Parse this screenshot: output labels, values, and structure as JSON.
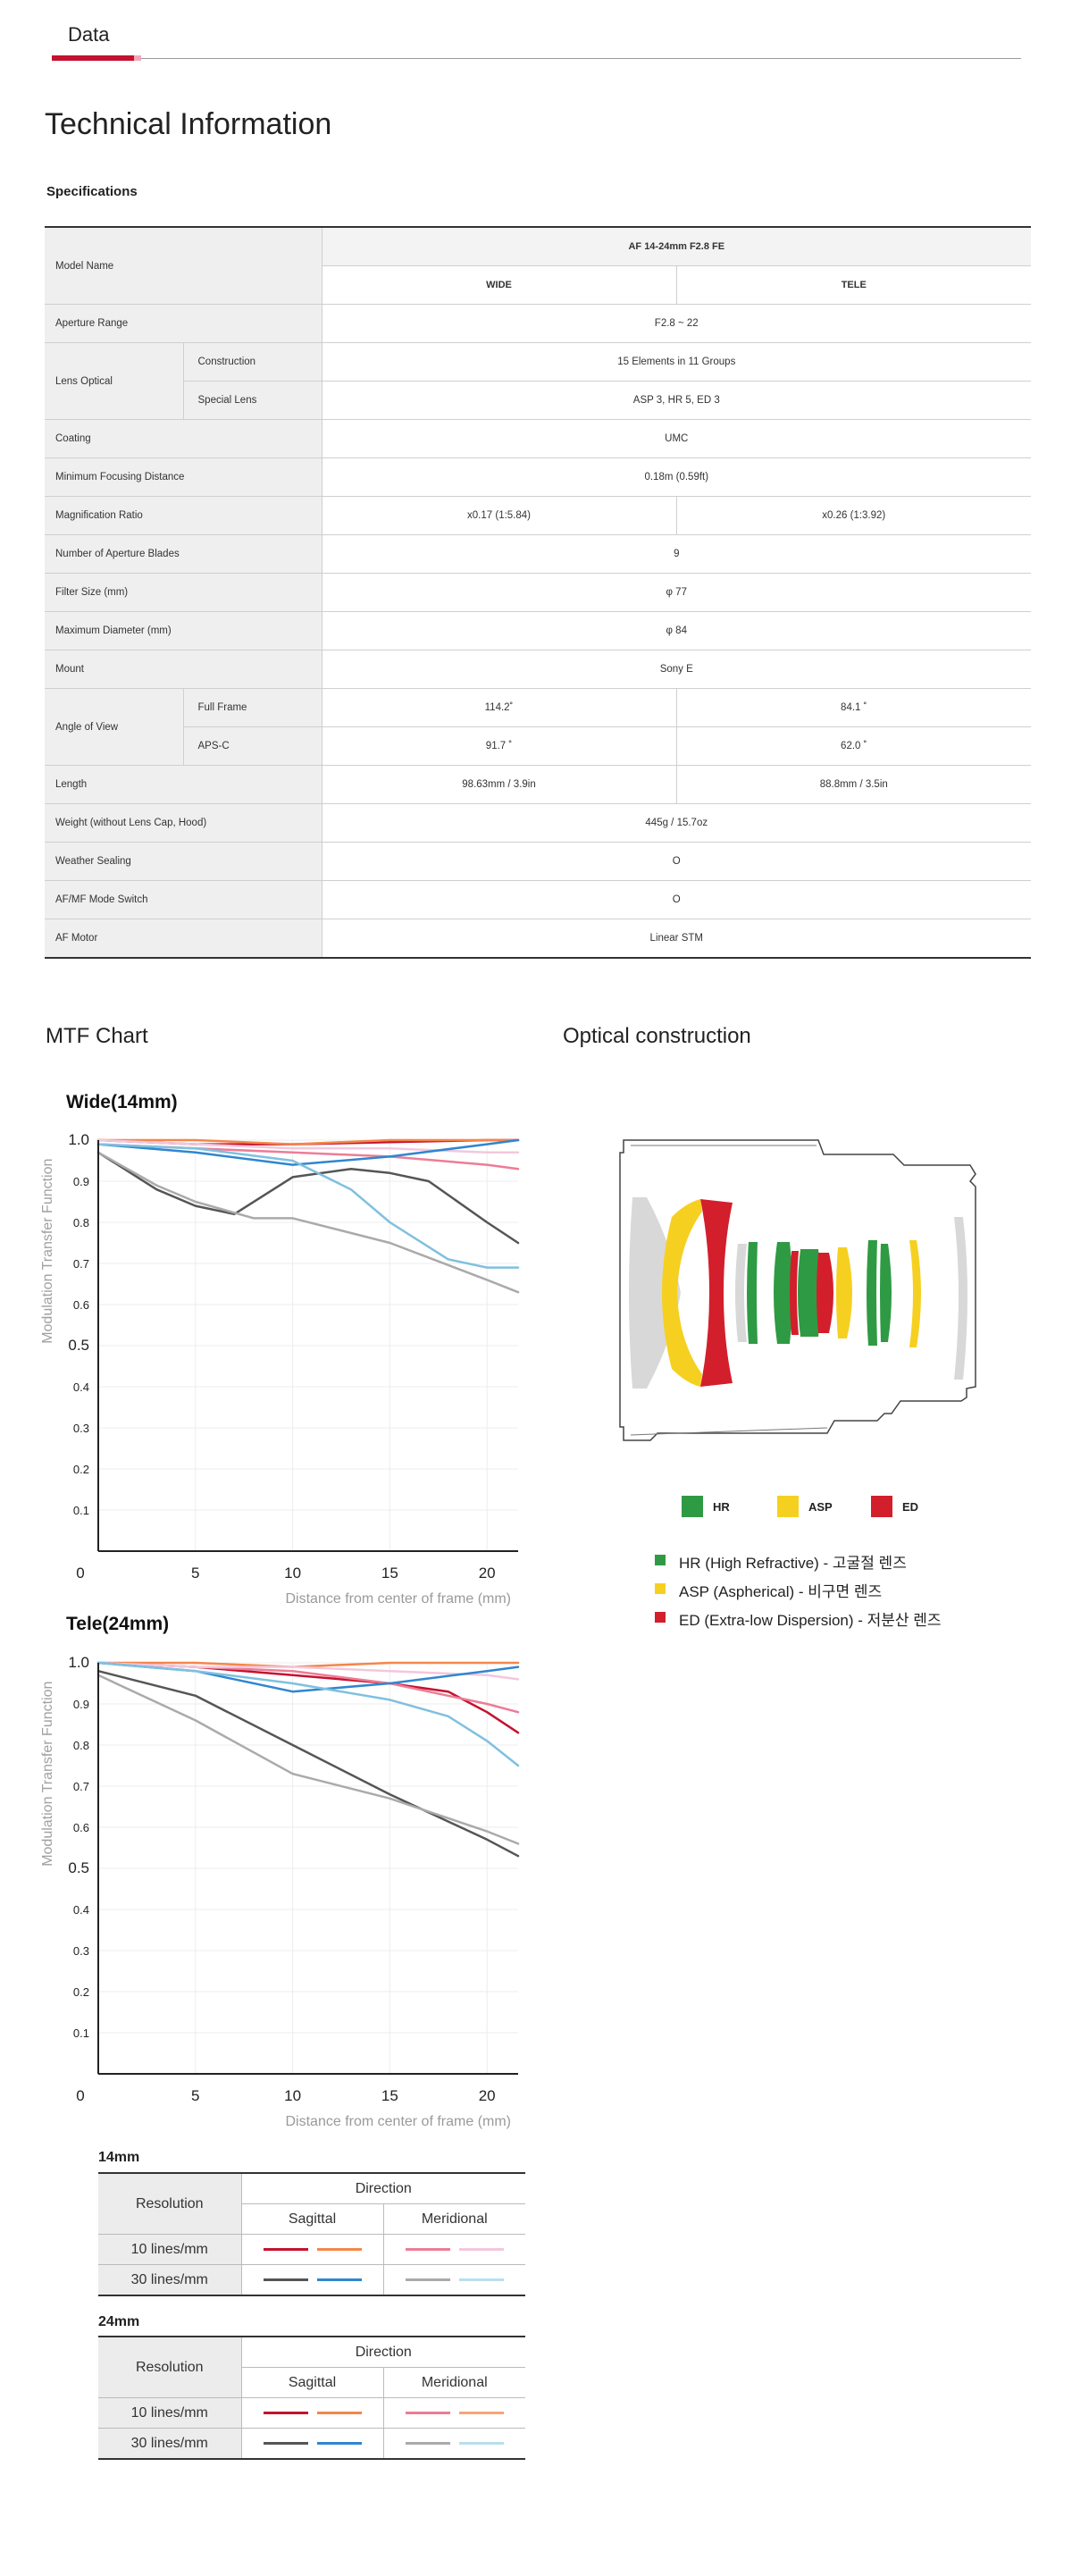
{
  "tab": {
    "label": "Data"
  },
  "technical": {
    "title": "Technical Information",
    "spec_title": "Specifications"
  },
  "spec": {
    "model_label": "Model Name",
    "model_value": "AF 14-24mm F2.8 FE",
    "wide": "WIDE",
    "tele": "TELE",
    "aperture_label": "Aperture Range",
    "aperture_value": "F2.8 ~ 22",
    "lens_optical_label": "Lens Optical",
    "construction_label": "Construction",
    "construction_value": "15 Elements in 11 Groups",
    "special_lens_label": "Special Lens",
    "special_lens_value": "ASP 3, HR 5, ED 3",
    "coating_label": "Coating",
    "coating_value": "UMC",
    "mfd_label": "Minimum Focusing Distance",
    "mfd_value": "0.18m (0.59ft)",
    "mag_label": "Magnification Ratio",
    "mag_wide": "x0.17 (1:5.84)",
    "mag_tele": "x0.26 (1:3.92)",
    "blades_label": "Number of Aperture Blades",
    "blades_value": "9",
    "filter_label": "Filter Size (mm)",
    "filter_value": "φ 77",
    "diameter_label": "Maximum Diameter (mm)",
    "diameter_value": "φ 84",
    "mount_label": "Mount",
    "mount_value": "Sony E",
    "aov_label": "Angle of View",
    "ff_label": "Full Frame",
    "ff_wide": "114.2˚",
    "ff_tele": "84.1 ˚",
    "apsc_label": "APS-C",
    "apsc_wide": "91.7 ˚",
    "apsc_tele": "62.0 ˚",
    "length_label": "Length",
    "length_wide": "98.63mm / 3.9in",
    "length_tele": "88.8mm / 3.5in",
    "weight_label": "Weight (without Lens Cap, Hood)",
    "weight_value": "445g / 15.7oz",
    "sealing_label": "Weather Sealing",
    "sealing_value": "O",
    "afmf_label": "AF/MF Mode Switch",
    "afmf_value": "O",
    "motor_label": "AF Motor",
    "motor_value": "Linear STM"
  },
  "sections": {
    "mtf": "MTF Chart",
    "optical": "Optical construction"
  },
  "chart_data": [
    {
      "type": "line",
      "title": "Wide(14mm)",
      "xlabel": "Distance from center of frame (mm)",
      "ylabel": "Modulation Transfer Function",
      "xlim": [
        0,
        21.6
      ],
      "ylim": [
        0,
        1.0
      ],
      "xticks": [
        "0",
        "5",
        "10",
        "15",
        "20"
      ],
      "yticks": [
        "0.1",
        "0.2",
        "0.3",
        "0.4",
        "0.5",
        "0.6",
        "0.7",
        "0.8",
        "0.9",
        "1.0"
      ],
      "grid": true,
      "series": [
        {
          "name": "10 lines/mm Sagittal",
          "color": "#c4122f",
          "x": [
            0,
            5,
            10,
            15,
            20,
            21.6
          ],
          "y": [
            1.0,
            0.99,
            0.99,
            0.995,
            1.0,
            1.0
          ]
        },
        {
          "name": "10 lines/mm Sagittal",
          "color": "#f4864a",
          "x": [
            0,
            5,
            10,
            15,
            20,
            21.6
          ],
          "y": [
            1.0,
            1.0,
            0.99,
            1.0,
            1.0,
            1.0
          ]
        },
        {
          "name": "10 lines/mm Meridional",
          "color": "#ec7d96",
          "x": [
            0,
            5,
            10,
            15,
            20,
            21.6
          ],
          "y": [
            0.99,
            0.98,
            0.97,
            0.96,
            0.94,
            0.93
          ]
        },
        {
          "name": "10 lines/mm Meridional",
          "color": "#f3c7dd",
          "x": [
            0,
            5,
            10,
            15,
            20,
            21.6
          ],
          "y": [
            1.0,
            0.99,
            0.98,
            0.98,
            0.97,
            0.97
          ]
        },
        {
          "name": "30 lines/mm Sagittal",
          "color": "#555555",
          "x": [
            0,
            3,
            5,
            7,
            10,
            13,
            15,
            17,
            20,
            21.6
          ],
          "y": [
            0.97,
            0.88,
            0.84,
            0.82,
            0.91,
            0.93,
            0.92,
            0.9,
            0.8,
            0.75
          ]
        },
        {
          "name": "30 lines/mm Sagittal",
          "color": "#2f86d0",
          "x": [
            0,
            5,
            10,
            15,
            20,
            21.6
          ],
          "y": [
            0.99,
            0.97,
            0.94,
            0.96,
            0.99,
            1.0
          ]
        },
        {
          "name": "30 lines/mm Meridional",
          "color": "#aaaaaa",
          "x": [
            0,
            3,
            5,
            8,
            10,
            15,
            20,
            21.6
          ],
          "y": [
            0.97,
            0.89,
            0.85,
            0.81,
            0.81,
            0.75,
            0.66,
            0.63
          ]
        },
        {
          "name": "30 lines/mm Meridional",
          "color": "#7fc0e0",
          "x": [
            0,
            5,
            10,
            13,
            15,
            18,
            20,
            21.6
          ],
          "y": [
            0.99,
            0.98,
            0.95,
            0.88,
            0.8,
            0.71,
            0.69,
            0.69
          ]
        }
      ]
    },
    {
      "type": "line",
      "title": "Tele(24mm)",
      "xlabel": "Distance from center of frame (mm)",
      "ylabel": "Modulation Transfer Function",
      "xlim": [
        0,
        21.6
      ],
      "ylim": [
        0,
        1.0
      ],
      "xticks": [
        "0",
        "5",
        "10",
        "15",
        "20"
      ],
      "yticks": [
        "0.1",
        "0.2",
        "0.3",
        "0.4",
        "0.5",
        "0.6",
        "0.7",
        "0.8",
        "0.9",
        "1.0"
      ],
      "grid": true,
      "series": [
        {
          "name": "10 lines/mm Sagittal",
          "color": "#c4122f",
          "x": [
            0,
            5,
            10,
            15,
            18,
            20,
            21.6
          ],
          "y": [
            1.0,
            0.99,
            0.97,
            0.95,
            0.93,
            0.88,
            0.83
          ]
        },
        {
          "name": "10 lines/mm Sagittal",
          "color": "#f4864a",
          "x": [
            0,
            5,
            10,
            15,
            20,
            21.6
          ],
          "y": [
            1.0,
            1.0,
            0.99,
            1.0,
            1.0,
            1.0
          ]
        },
        {
          "name": "10 lines/mm Meridional",
          "color": "#ec7d96",
          "x": [
            0,
            5,
            10,
            15,
            20,
            21.6
          ],
          "y": [
            1.0,
            0.99,
            0.98,
            0.95,
            0.9,
            0.88
          ]
        },
        {
          "name": "10 lines/mm Meridional",
          "color": "#f3c7dd",
          "x": [
            0,
            5,
            10,
            15,
            20,
            21.6
          ],
          "y": [
            1.0,
            0.99,
            0.99,
            0.98,
            0.97,
            0.96
          ]
        },
        {
          "name": "30 lines/mm Sagittal",
          "color": "#555555",
          "x": [
            0,
            5,
            10,
            15,
            20,
            21.6
          ],
          "y": [
            0.98,
            0.92,
            0.8,
            0.68,
            0.57,
            0.53
          ]
        },
        {
          "name": "30 lines/mm Sagittal",
          "color": "#2f86d0",
          "x": [
            0,
            5,
            10,
            15,
            20,
            21.6
          ],
          "y": [
            1.0,
            0.98,
            0.93,
            0.95,
            0.98,
            0.99
          ]
        },
        {
          "name": "30 lines/mm Meridional",
          "color": "#aaaaaa",
          "x": [
            0,
            5,
            10,
            15,
            20,
            21.6
          ],
          "y": [
            0.97,
            0.86,
            0.73,
            0.67,
            0.59,
            0.56
          ]
        },
        {
          "name": "30 lines/mm Meridional",
          "color": "#7fc0e0",
          "x": [
            0,
            5,
            10,
            15,
            18,
            20,
            21.6
          ],
          "y": [
            1.0,
            0.98,
            0.95,
            0.91,
            0.87,
            0.81,
            0.75
          ]
        }
      ]
    }
  ],
  "mtf_legend": {
    "resolution": "Resolution",
    "direction": "Direction",
    "sagittal": "Sagittal",
    "meridional": "Meridional",
    "row10": "10 lines/mm",
    "row30": "30 lines/mm",
    "t14": "14mm",
    "t24": "24mm",
    "colors": {
      "s10": [
        "#c4122f",
        "#f4864a"
      ],
      "m10": [
        "#ec7d96",
        "#f3c7dd"
      ],
      "s30": [
        "#555555",
        "#2f86d0"
      ],
      "m30": [
        "#aaaaaa",
        "#b8def0"
      ]
    }
  },
  "optical": {
    "keys": {
      "hr": "HR",
      "asp": "ASP",
      "ed": "ED"
    },
    "colors": {
      "hr": "#2f9a44",
      "asp": "#f6d020",
      "ed": "#d21f2b"
    },
    "notes": {
      "hr": "HR (High Refractive) - 고굴절 렌즈",
      "asp": "ASP (Aspherical) - 비구면 렌즈",
      "ed": "ED (Extra-low Dispersion) - 저분산 렌즈"
    }
  }
}
